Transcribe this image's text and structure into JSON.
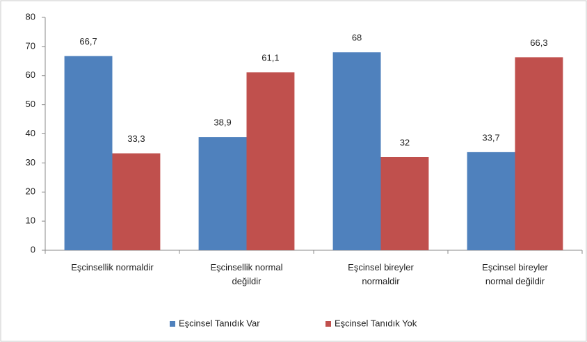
{
  "chart_data": {
    "type": "bar",
    "categories": [
      "Eşcinsellik normaldir",
      "Eşcinsellik normal değildir",
      "Eşcinsel bireyler normaldir",
      "Eşcinsel bireyler normal değildir"
    ],
    "series": [
      {
        "name": "Eşcinsel Tanıdık Var",
        "color": "#4f81bd",
        "values": [
          66.7,
          38.9,
          68,
          33.7
        ],
        "value_labels": [
          "66,7",
          "38,9",
          "68",
          "33,7"
        ]
      },
      {
        "name": "Eşcinsel Tanıdık Yok",
        "color": "#c0504d",
        "values": [
          33.3,
          61.1,
          32,
          66.3
        ],
        "value_labels": [
          "33,3",
          "61,1",
          "32",
          "66,3"
        ]
      }
    ],
    "ylim": [
      0,
      80
    ],
    "yticks": [
      0,
      10,
      20,
      30,
      40,
      50,
      60,
      70,
      80
    ],
    "grid": false,
    "legend": "bottom"
  }
}
